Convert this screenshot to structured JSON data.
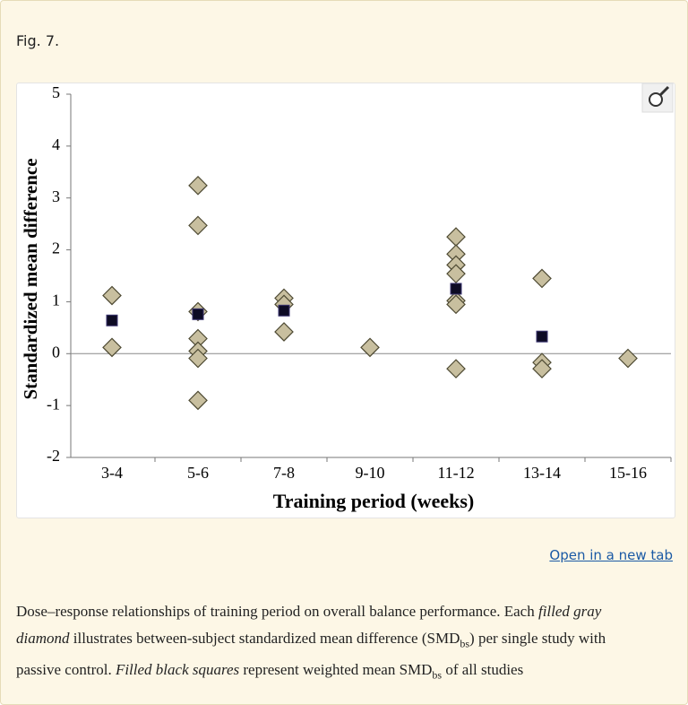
{
  "header": {
    "label": "Fig. 7."
  },
  "chart_data": {
    "type": "scatter",
    "xlabel": "Training period (weeks)",
    "ylabel": "Standardized mean difference",
    "categories": [
      "3-4",
      "5-6",
      "7-8",
      "9-10",
      "11-12",
      "13-14",
      "15-16"
    ],
    "ylim": [
      -2,
      5
    ],
    "yticks": [
      -2,
      -1,
      0,
      1,
      2,
      3,
      4,
      5
    ],
    "zero_line": true,
    "series": [
      {
        "marker": "diamond",
        "color": "#c8bf9f",
        "x": [
          "3-4",
          "3-4",
          "5-6",
          "5-6",
          "5-6",
          "5-6",
          "5-6",
          "5-6",
          "5-6",
          "7-8",
          "7-8",
          "7-8",
          "9-10",
          "11-12",
          "11-12",
          "11-12",
          "11-12",
          "11-12",
          "11-12",
          "11-12",
          "13-14",
          "13-14",
          "13-14",
          "15-16"
        ],
        "values": [
          1.12,
          0.12,
          3.24,
          2.47,
          0.81,
          0.29,
          0.05,
          -0.09,
          -0.9,
          1.07,
          0.95,
          0.42,
          0.12,
          2.25,
          1.92,
          1.71,
          1.54,
          1.02,
          0.95,
          -0.29,
          1.45,
          -0.17,
          -0.29,
          -0.09
        ]
      },
      {
        "marker": "square",
        "color": "#0d0b24",
        "x": [
          "3-4",
          "5-6",
          "7-8",
          "11-12",
          "13-14"
        ],
        "values": [
          0.64,
          0.76,
          0.83,
          1.25,
          0.33
        ]
      }
    ]
  },
  "link": {
    "label": "Open in a new tab"
  },
  "caption": {
    "parts": [
      {
        "text": "Dose–response relationships of training period on overall balance performance. Each "
      },
      {
        "text": "filled gray diamond",
        "style": "italic"
      },
      {
        "text": " illustrates between-subject standardized mean difference (SMD"
      },
      {
        "text": "bs",
        "style": "sub"
      },
      {
        "text": ") per single study with passive control. "
      },
      {
        "text": "Filled black squares",
        "style": "italic"
      },
      {
        "text": " represent weighted mean SMD"
      },
      {
        "text": "bs",
        "style": "sub"
      },
      {
        "text": " of all studies"
      }
    ]
  }
}
